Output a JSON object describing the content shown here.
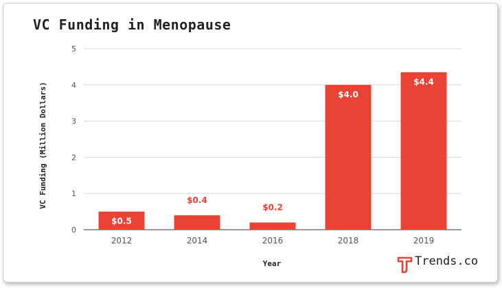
{
  "chart_data": {
    "type": "bar",
    "title": "VC Funding in Menopause",
    "xlabel": "Year",
    "ylabel": "VC Funding (Million Dollars)",
    "categories": [
      "2012",
      "2014",
      "2016",
      "2018",
      "2019"
    ],
    "values": [
      0.5,
      0.4,
      0.2,
      4.0,
      4.35
    ],
    "data_labels": [
      "$0.5",
      "$0.4",
      "$0.2",
      "$4.0",
      "$4.4"
    ],
    "ylim": [
      0,
      5
    ],
    "yticks": [
      0,
      1,
      2,
      3,
      4,
      5
    ],
    "grid": true,
    "bar_color": "#e94335",
    "label_color_inside": "#ffffff"
  },
  "brand": {
    "name": "Trends.co",
    "icon": "trends-logo-icon",
    "accent": "#e94335"
  }
}
